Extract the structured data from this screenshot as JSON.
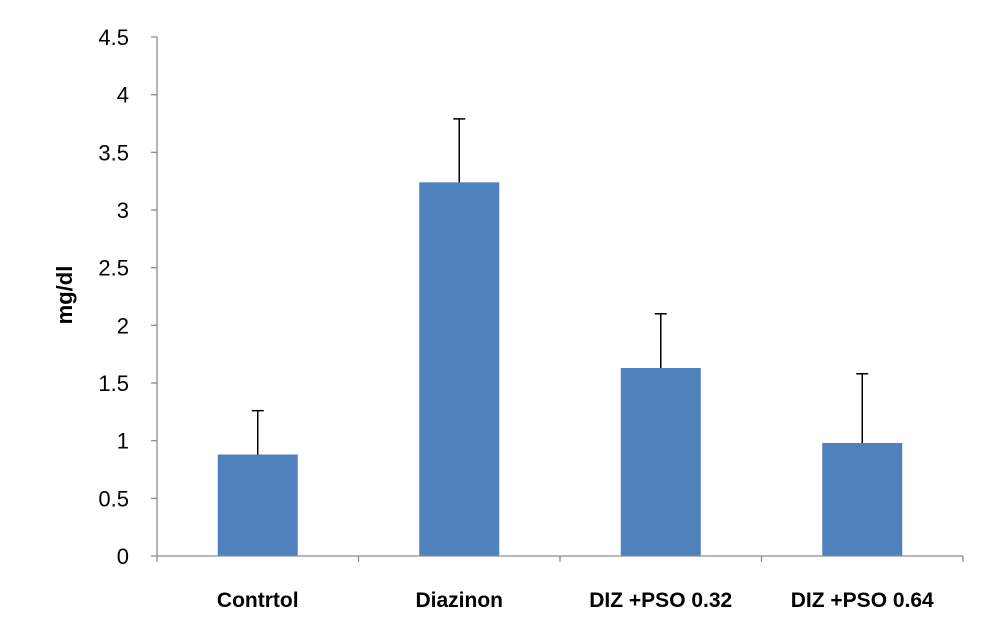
{
  "chart_data": {
    "type": "bar",
    "title": "",
    "xlabel": "",
    "ylabel": "mg/dl",
    "ylim": [
      0,
      4.5
    ],
    "yticks": [
      "0",
      "0.5",
      "1",
      "1.5",
      "2",
      "2.5",
      "3",
      "3.5",
      "4",
      "4.5"
    ],
    "yticks_values": [
      0,
      0.5,
      1,
      1.5,
      2,
      2.5,
      3,
      3.5,
      4,
      4.5
    ],
    "categories": [
      "Contrtol",
      "Diazinon",
      "DIZ +PSO 0.32",
      "DIZ +PSO 0.64"
    ],
    "values": [
      0.88,
      3.24,
      1.63,
      0.98
    ],
    "errors": [
      0.38,
      0.55,
      0.47,
      0.6
    ],
    "bar_color": "#4F81BD",
    "error_bar_color": "#000000",
    "grid": false,
    "legend": "none"
  }
}
